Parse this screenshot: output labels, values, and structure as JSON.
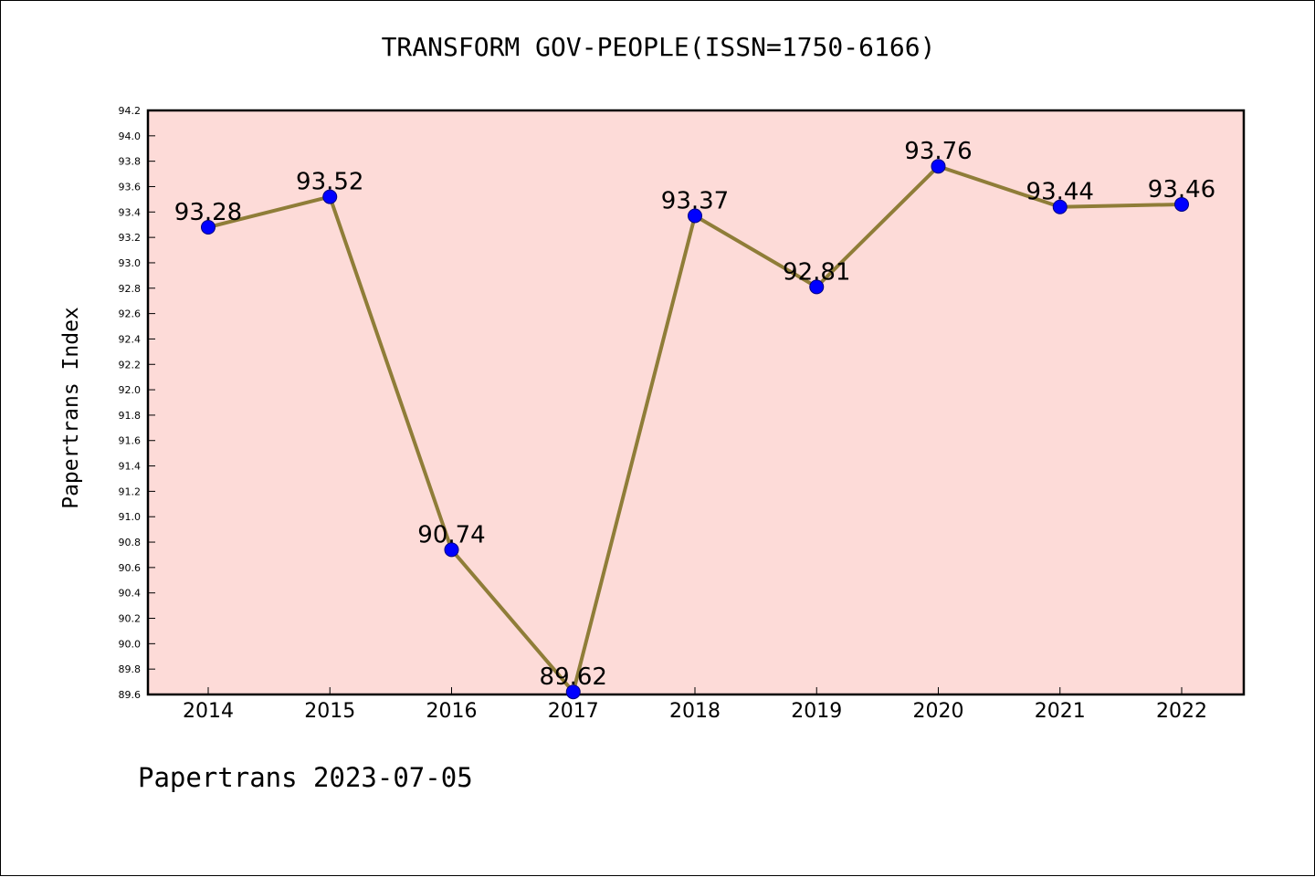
{
  "chart_data": {
    "type": "line",
    "title": "TRANSFORM GOV-PEOPLE(ISSN=1750-6166)",
    "ylabel": "Papertrans Index",
    "xlabel": "",
    "categories": [
      "2014",
      "2015",
      "2016",
      "2017",
      "2018",
      "2019",
      "2020",
      "2021",
      "2022"
    ],
    "series": [
      {
        "values": [
          93.28,
          93.52,
          90.74,
          89.62,
          93.37,
          92.81,
          93.76,
          93.44,
          93.46
        ]
      }
    ],
    "data_labels": [
      "93.28",
      "93.52",
      "90.74",
      "89.62",
      "93.37",
      "92.81",
      "93.76",
      "93.44",
      "93.46"
    ],
    "ylim": [
      89.6,
      94.2
    ],
    "yticks": [
      "89.6",
      "89.8",
      "90.0",
      "90.2",
      "90.4",
      "90.6",
      "90.8",
      "91.0",
      "91.2",
      "91.4",
      "91.6",
      "91.8",
      "92.0",
      "92.2",
      "92.4",
      "92.6",
      "92.8",
      "93.0",
      "93.2",
      "93.4",
      "93.6",
      "93.8",
      "94.0",
      "94.2"
    ],
    "grid": false,
    "colors": {
      "plot_background": "#fddbd8",
      "line": "#8f7d38",
      "marker": "#0000ff",
      "marker_edge": "#000080"
    }
  },
  "footer": {
    "text": "Papertrans 2023-07-05"
  }
}
